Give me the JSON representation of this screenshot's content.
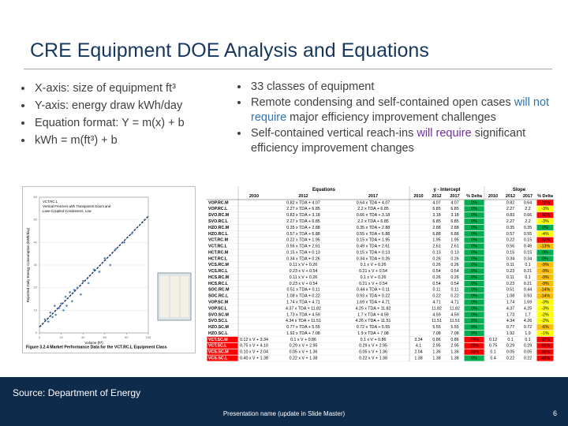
{
  "slide": {
    "title": "CRE Equipment DOE Analysis and Equations",
    "left_bullets": [
      "X-axis: size of equipment ft³",
      "Y-axis: energy draw kWh/day",
      "Equation format: Y = m(x) + b",
      "kWh = m(ft³) + b"
    ],
    "right_bullets": [
      [
        {
          "text": "33 classes of equipment"
        }
      ],
      [
        {
          "text": "Remote condensing and self-contained open cases "
        },
        {
          "text": "will not require",
          "color": "#2e75b6"
        },
        {
          "text": " major efficiency improvement challenges"
        }
      ],
      [
        {
          "text": "Self-contained vertical reach-ins "
        },
        {
          "text": "will require",
          "color": "#7030a0"
        },
        {
          "text": " significant efficiency improvement changes"
        }
      ]
    ],
    "source": "Source: Department of Energy",
    "footer": "Presentation name (update in Slide Master)",
    "page": "6"
  },
  "chart_data": {
    "type": "scatter",
    "caption": "Figure 3.2.4 Market Performance Data for the VCT.RC.L Equipment Class",
    "legend_lines": [
      "VCT.RC.L",
      "Vertical Freezers with Transparent Doors and",
      "Lane-Coupled Condensers, Low"
    ],
    "x_label": "Volume (ft³)",
    "y_label": "Reported Daily Energy Consumption (kWh/day)",
    "xlim": [
      0,
      100
    ],
    "ylim": [
      0,
      60
    ],
    "xticks": [
      0,
      20,
      40,
      60,
      80,
      100
    ],
    "yticks": [
      0,
      10,
      20,
      30,
      40,
      50,
      60
    ],
    "grid": true,
    "series": [
      {
        "color": "#4f81bd",
        "x": [
          5,
          8,
          10,
          12,
          14,
          15,
          18,
          20,
          22,
          24,
          25,
          28,
          30,
          32,
          35,
          38,
          40,
          45,
          50,
          55,
          60,
          65,
          70,
          78,
          85
        ],
        "values": [
          6,
          5,
          9,
          7,
          12,
          8,
          11,
          13,
          10,
          16,
          12,
          18,
          14,
          19,
          20,
          17,
          23,
          22,
          28,
          27,
          33,
          30,
          37,
          40,
          44
        ]
      }
    ],
    "trend": {
      "color": "#1f3864",
      "x": [
        0,
        100
      ],
      "y": [
        2.6,
        51.6
      ]
    }
  },
  "table": {
    "groups": [
      "Equations",
      "y - Intercept",
      "Slope"
    ],
    "years": [
      [
        "2010",
        "2012",
        "2017"
      ],
      [
        "2010",
        "2012",
        "2017",
        "% Delta"
      ],
      [
        "2010",
        "2012",
        "2017",
        "% Delta"
      ]
    ],
    "rows": [
      {
        "cells": [
          "VOP.RC.M",
          null,
          "0.82 x TDA + 4.07",
          "0.64 x TDA + 4.07",
          null,
          "4.07",
          "4.07",
          "0%",
          null,
          "0.82",
          "0.64",
          "-22%"
        ],
        "fills": {
          "7": "#00b050",
          "11": "#ff0000"
        }
      },
      {
        "cells": [
          "VOP.RC.L",
          null,
          "2.27 x TDA + 6.85",
          "2.2 x TDA + 6.85",
          null,
          "6.85",
          "6.85",
          "0%",
          null,
          "2.27",
          "2.2",
          "-3%"
        ],
        "fills": {
          "7": "#00b050",
          "11": "#ffff00"
        }
      },
      {
        "cells": [
          "SVO.RC.M",
          null,
          "0.83 x TDA + 3.18",
          "0.66 x TDA + 3.18",
          null,
          "3.18",
          "3.18",
          "0%",
          null,
          "0.83",
          "0.66",
          "-20%"
        ],
        "fills": {
          "7": "#00b050",
          "11": "#ff0000"
        }
      },
      {
        "cells": [
          "SVO.RC.L",
          null,
          "2.27 x TDA + 6.85",
          "2.2 x TDA + 6.85",
          null,
          "6.85",
          "6.85",
          "0%",
          null,
          "2.27",
          "2.2",
          "-3%"
        ],
        "fills": {
          "7": "#00b050",
          "11": "#ffff00"
        }
      },
      {
        "cells": [
          "HZO.RC.M",
          null,
          "0.35 x TDA + 2.88",
          "0.35 x TDA + 2.88",
          null,
          "2.88",
          "2.88",
          "0%",
          null,
          "0.35",
          "0.35",
          "0%"
        ],
        "fills": {
          "7": "#00b050",
          "11": "#00b050"
        }
      },
      {
        "cells": [
          "HZO.RC.L",
          null,
          "0.57 x TDA + 6.88",
          "0.55 x TDA + 6.88",
          null,
          "6.88",
          "6.88",
          "0%",
          null,
          "0.57",
          "0.55",
          "-4%"
        ],
        "fills": {
          "7": "#00b050",
          "11": "#ffff00"
        }
      },
      {
        "cells": [
          "VCT.RC.M",
          null,
          "0.22 x TDA + 1.95",
          "0.15 x TDA + 1.95",
          null,
          "1.95",
          "1.95",
          "0%",
          null,
          "0.22",
          "0.15",
          "-32%"
        ],
        "fills": {
          "7": "#00b050",
          "11": "#ff0000"
        }
      },
      {
        "cells": [
          "VCT.RC.L",
          null,
          "0.56 x TDA + 2.61",
          "0.49 x TDA + 2.61",
          null,
          "2.61",
          "2.61",
          "0%",
          null,
          "0.56",
          "0.49",
          "-13%"
        ],
        "fills": {
          "7": "#00b050",
          "11": "#ffc000"
        }
      },
      {
        "cells": [
          "HCT.RC.M",
          null,
          "0.15 x TDA + 0.13",
          "0.15 x TDA + 0.13",
          null,
          "0.13",
          "0.13",
          "0%",
          null,
          "0.15",
          "0.15",
          "0%"
        ],
        "fills": {
          "7": "#00b050",
          "11": "#00b050"
        }
      },
      {
        "cells": [
          "HCT.RC.L",
          null,
          "0.34 x TDA + 0.26",
          "0.34 x TDA + 0.26",
          null,
          "0.26",
          "0.26",
          "0%",
          null,
          "0.34",
          "0.34",
          "0%"
        ],
        "fills": {
          "7": "#00b050",
          "11": "#00b050"
        }
      },
      {
        "cells": [
          "VCS.RC.M",
          null,
          "0.11 x V + 0.26",
          "0.1 x V + 0.26",
          null,
          "0.26",
          "0.26",
          "0%",
          null,
          "0.11",
          "0.1",
          "-9%"
        ],
        "fills": {
          "7": "#00b050",
          "11": "#ffc000"
        }
      },
      {
        "cells": [
          "VCS.RC.L",
          null,
          "0.23 x V + 0.54",
          "0.21 x V + 0.54",
          null,
          "0.54",
          "0.54",
          "0%",
          null,
          "0.23",
          "0.21",
          "-9%"
        ],
        "fills": {
          "7": "#00b050",
          "11": "#ffc000"
        }
      },
      {
        "cells": [
          "HCS.RC.M",
          null,
          "0.11 x V + 0.26",
          "0.1 x V + 0.26",
          null,
          "0.26",
          "0.26",
          "0%",
          null,
          "0.11",
          "0.1",
          "-9%"
        ],
        "fills": {
          "7": "#00b050",
          "11": "#ffc000"
        }
      },
      {
        "cells": [
          "HCS.RC.L",
          null,
          "0.23 x V + 0.54",
          "0.21 x V + 0.54",
          null,
          "0.54",
          "0.54",
          "0%",
          null,
          "0.23",
          "0.21",
          "-9%"
        ],
        "fills": {
          "7": "#00b050",
          "11": "#ffc000"
        }
      },
      {
        "cells": [
          "SOC.RC.M",
          null,
          "0.51 x TDA + 0.11",
          "0.44 x TDA + 0.11",
          null,
          "0.11",
          "0.11",
          "0%",
          null,
          "0.51",
          "0.44",
          "-14%"
        ],
        "fills": {
          "7": "#00b050",
          "11": "#ffc000"
        }
      },
      {
        "cells": [
          "SOC.RC.L",
          null,
          "1.08 x TDA + 0.22",
          "0.93 x TDA + 0.22",
          null,
          "0.22",
          "0.22",
          "0%",
          null,
          "1.08",
          "0.93",
          "-14%"
        ],
        "fills": {
          "7": "#00b050",
          "11": "#ffc000"
        }
      },
      {
        "cells": [
          "VOP.SC.M",
          null,
          "1.74 x TDA + 4.71",
          "1.69 x TDA + 4.71",
          null,
          "4.71",
          "4.71",
          "0%",
          null,
          "1.74",
          "1.69",
          "-3%"
        ],
        "fills": {
          "7": "#00b050",
          "11": "#ffff00"
        }
      },
      {
        "cells": [
          "VOP.SC.L",
          null,
          "4.37 x TDA + 11.82",
          "4.25 x TDA + 11.82",
          null,
          "11.82",
          "11.82",
          "0%",
          null,
          "4.37",
          "4.25",
          "-3%"
        ],
        "fills": {
          "7": "#00b050",
          "11": "#ffff00"
        }
      },
      {
        "cells": [
          "SVO.SC.M",
          null,
          "1.73 x TDA + 4.59",
          "1.7 x TDA + 4.59",
          null,
          "4.59",
          "4.59",
          "0%",
          null,
          "1.73",
          "1.7",
          "-2%"
        ],
        "fills": {
          "7": "#00b050",
          "11": "#ffff00"
        }
      },
      {
        "cells": [
          "SVO.SC.L",
          null,
          "4.34 x TDA + 11.51",
          "4.26 x TDA + 11.51",
          null,
          "11.51",
          "11.51",
          "0%",
          null,
          "4.34",
          "4.26",
          "-2%"
        ],
        "fills": {
          "7": "#00b050",
          "11": "#ffff00"
        }
      },
      {
        "cells": [
          "HZO.SC.M",
          null,
          "0.77 x TDA + 5.55",
          "0.72 x TDA + 5.55",
          null,
          "5.55",
          "5.55",
          "0%",
          null,
          "0.77",
          "0.72",
          "-6%"
        ],
        "fills": {
          "7": "#00b050",
          "11": "#ffc000"
        }
      },
      {
        "cells": [
          "HZO.SC.L",
          null,
          "1.92 x TDA + 7.08",
          "1.9 x TDA + 7.08",
          null,
          "7.08",
          "7.08",
          "0%",
          null,
          "1.92",
          "1.9",
          "-1%"
        ],
        "fills": {
          "7": "#00b050",
          "11": "#ffff00"
        }
      },
      {
        "cells": [
          "VCT.SC.M",
          "0.12 x V + 3.34",
          "0.1 x V + 0.86",
          "0.1 x V + 0.86",
          "3.34",
          "0.86",
          "0.86",
          "-74%",
          "0.12",
          "0.1",
          "0.1",
          "-17%"
        ],
        "fills": {
          "0": "#ff0000",
          "7": "#ff0000",
          "11": "#ff0000"
        }
      },
      {
        "cells": [
          "VCT.SC.L",
          "0.75 x V + 4.10",
          "0.29 x V + 2.95",
          "0.29 x V + 2.95",
          "4.1",
          "2.95",
          "2.95",
          "-28%",
          "0.75",
          "0.29",
          "0.29",
          "-61%"
        ],
        "fills": {
          "0": "#ff0000",
          "7": "#ff0000",
          "11": "#ff0000"
        }
      },
      {
        "cells": [
          "VCS.SC.M",
          "0.10 x V + 2.04",
          "0.05 x V + 1.36",
          "0.05 x V + 1.36",
          "2.04",
          "1.36",
          "1.36",
          "-33%",
          "0.1",
          "0.05",
          "0.05",
          "-50%"
        ],
        "fills": {
          "0": "#ff0000",
          "7": "#ff0000",
          "11": "#ff0000"
        }
      },
      {
        "cells": [
          "VCS.SC.L",
          "0.40 x V + 1.38",
          "0.22 x V + 1.38",
          "0.22 x V + 1.38",
          "1.38",
          "1.38",
          "1.38",
          "0%",
          "0.4",
          "0.22",
          "0.22",
          "-45%"
        ],
        "fills": {
          "0": "#ff0000",
          "7": "#00b050",
          "11": "#ff0000"
        }
      }
    ]
  }
}
